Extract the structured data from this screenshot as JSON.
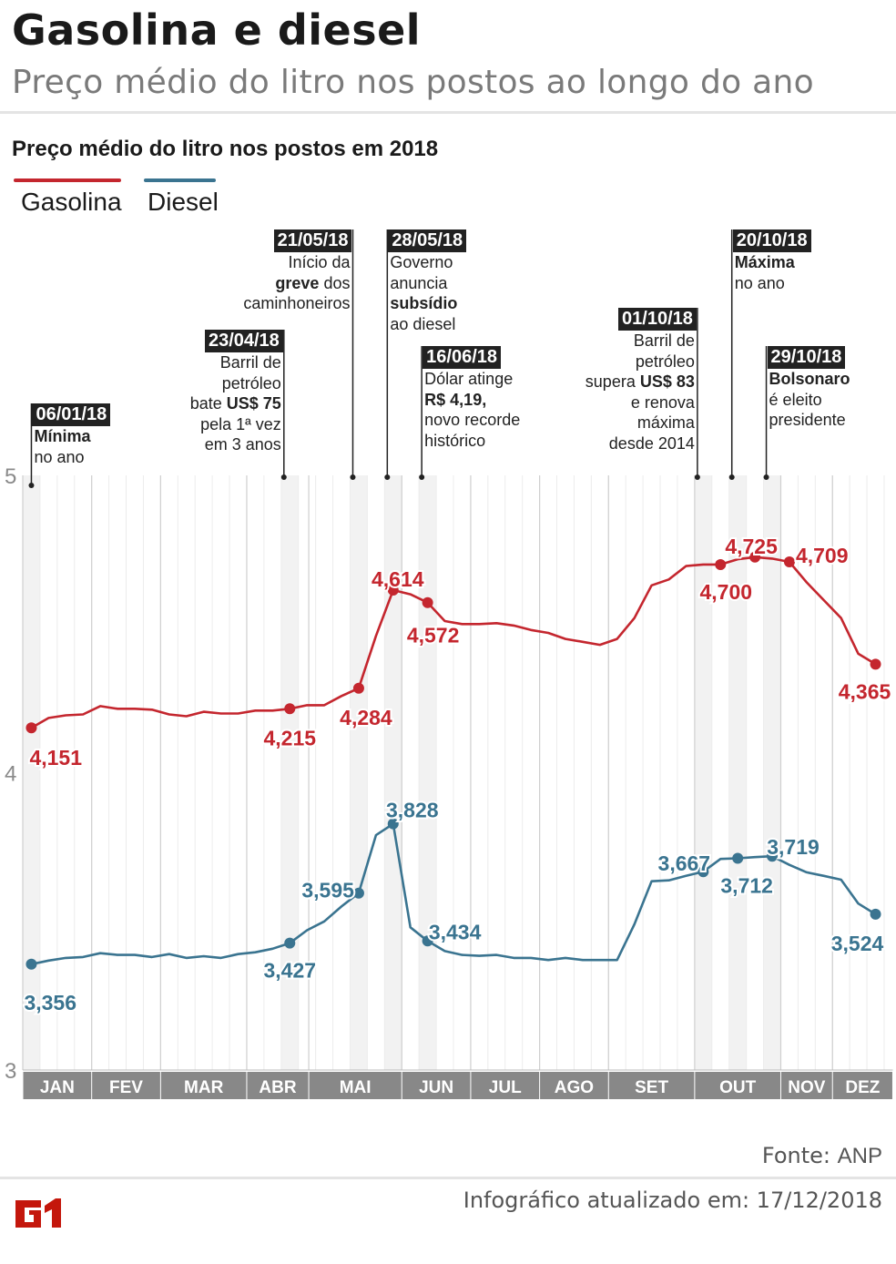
{
  "header": {
    "title": "Gasolina e diesel",
    "subtitle": "Preço médio do litro nos postos ao longo do ano"
  },
  "chart_data": {
    "type": "line",
    "title": "Preço médio do litro nos postos em 2018",
    "xlabel": "",
    "ylabel": "",
    "ylim": [
      3,
      5
    ],
    "yticks": [
      "3",
      "4",
      "5"
    ],
    "x_unit": "week",
    "months": [
      {
        "label": "JAN",
        "weeks": 4
      },
      {
        "label": "FEV",
        "weeks": 4
      },
      {
        "label": "MAR",
        "weeks": 5
      },
      {
        "label": "ABR",
        "weeks": 3.6
      },
      {
        "label": "MAI",
        "weeks": 5.4
      },
      {
        "label": "JUN",
        "weeks": 4
      },
      {
        "label": "JUL",
        "weeks": 4
      },
      {
        "label": "AGO",
        "weeks": 4
      },
      {
        "label": "SET",
        "weeks": 5
      },
      {
        "label": "OUT",
        "weeks": 5
      },
      {
        "label": "NOV",
        "weeks": 3
      },
      {
        "label": "DEZ",
        "weeks": 3.5
      }
    ],
    "highlighted_weeks": [
      0,
      15,
      19,
      21,
      23,
      39,
      41,
      43
    ],
    "grid": "vertical weekly",
    "legend_placement": "top-left",
    "series": [
      {
        "name": "Gasolina",
        "color": "#c4262e",
        "values": [
          4.151,
          4.184,
          4.193,
          4.196,
          4.224,
          4.215,
          4.215,
          4.212,
          4.196,
          4.19,
          4.205,
          4.199,
          4.199,
          4.209,
          4.209,
          4.215,
          4.227,
          4.227,
          4.258,
          4.284,
          4.46,
          4.614,
          4.6,
          4.572,
          4.51,
          4.5,
          4.5,
          4.503,
          4.495,
          4.48,
          4.47,
          4.45,
          4.44,
          4.43,
          4.45,
          4.52,
          4.63,
          4.65,
          4.695,
          4.7,
          4.7,
          4.718,
          4.725,
          4.72,
          4.709,
          4.64,
          4.58,
          4.52,
          4.4,
          4.365
        ],
        "labels": [
          {
            "week": 0,
            "text": "4,151"
          },
          {
            "week": 15,
            "text": "4,215"
          },
          {
            "week": 19,
            "text": "4,284"
          },
          {
            "week": 21,
            "text": "4,614"
          },
          {
            "week": 23,
            "text": "4,572"
          },
          {
            "week": 40,
            "text": "4,700"
          },
          {
            "week": 42,
            "text": "4,725"
          },
          {
            "week": 44,
            "text": "4,709"
          },
          {
            "week": 49,
            "text": "4,365"
          }
        ]
      },
      {
        "name": "Diesel",
        "color": "#3a7490",
        "values": [
          3.356,
          3.368,
          3.377,
          3.38,
          3.393,
          3.387,
          3.387,
          3.38,
          3.39,
          3.377,
          3.383,
          3.377,
          3.39,
          3.396,
          3.408,
          3.427,
          3.47,
          3.5,
          3.55,
          3.595,
          3.79,
          3.828,
          3.48,
          3.434,
          3.4,
          3.387,
          3.384,
          3.387,
          3.377,
          3.377,
          3.37,
          3.377,
          3.37,
          3.37,
          3.37,
          3.49,
          3.635,
          3.638,
          3.653,
          3.667,
          3.71,
          3.712,
          3.716,
          3.719,
          3.69,
          3.665,
          3.653,
          3.64,
          3.56,
          3.524
        ],
        "labels": [
          {
            "week": 0,
            "text": "3,356"
          },
          {
            "week": 15,
            "text": "3,427"
          },
          {
            "week": 19,
            "text": "3,595"
          },
          {
            "week": 21,
            "text": "3,828"
          },
          {
            "week": 23,
            "text": "3,434"
          },
          {
            "week": 39,
            "text": "3,667"
          },
          {
            "week": 41,
            "text": "3,712"
          },
          {
            "week": 43,
            "text": "3,719"
          },
          {
            "week": 49,
            "text": "3,524"
          }
        ]
      }
    ],
    "annotations": [
      {
        "week": 0,
        "date": "06/01/18",
        "lines": [
          [
            {
              "t": "Mínima",
              "b": true
            }
          ],
          [
            {
              "t": "no ano"
            }
          ]
        ]
      },
      {
        "week": 15,
        "date": "23/04/18",
        "lines": [
          [
            {
              "t": "Barril de"
            }
          ],
          [
            {
              "t": "petróleo"
            }
          ],
          [
            {
              "t": "bate "
            },
            {
              "t": "US$ 75",
              "b": true
            }
          ],
          [
            {
              "t": "pela 1ª vez"
            }
          ],
          [
            {
              "t": "em 3 anos"
            }
          ]
        ]
      },
      {
        "week": 19,
        "date": "21/05/18",
        "lines": [
          [
            {
              "t": "Início da"
            }
          ],
          [
            {
              "t": "greve",
              "b": true
            },
            {
              "t": " dos"
            }
          ],
          [
            {
              "t": "caminhoneiros"
            }
          ]
        ]
      },
      {
        "week": 21,
        "date": "28/05/18",
        "lines": [
          [
            {
              "t": "Governo"
            }
          ],
          [
            {
              "t": "anuncia"
            }
          ],
          [
            {
              "t": "subsídio",
              "b": true
            }
          ],
          [
            {
              "t": "ao diesel"
            }
          ]
        ]
      },
      {
        "week": 23,
        "date": "16/06/18",
        "lines": [
          [
            {
              "t": "Dólar atinge"
            }
          ],
          [
            {
              "t": "R$ 4,19,",
              "b": true
            }
          ],
          [
            {
              "t": "novo recorde"
            }
          ],
          [
            {
              "t": "histórico"
            }
          ]
        ]
      },
      {
        "week": 39,
        "date": "01/10/18",
        "lines": [
          [
            {
              "t": "Barril de"
            }
          ],
          [
            {
              "t": "petróleo"
            }
          ],
          [
            {
              "t": "supera "
            },
            {
              "t": "US$ 83",
              "b": true
            }
          ],
          [
            {
              "t": "e renova"
            }
          ],
          [
            {
              "t": "máxima"
            }
          ],
          [
            {
              "t": "desde 2014"
            }
          ]
        ]
      },
      {
        "week": 41,
        "date": "20/10/18",
        "lines": [
          [
            {
              "t": "Máxima",
              "b": true
            }
          ],
          [
            {
              "t": "no ano"
            }
          ]
        ]
      },
      {
        "week": 43,
        "date": "29/10/18",
        "lines": [
          [
            {
              "t": "Bolsonaro",
              "b": true
            }
          ],
          [
            {
              "t": "é eleito"
            }
          ],
          [
            {
              "t": "presidente"
            }
          ]
        ]
      }
    ]
  },
  "footer": {
    "source_label": "Fonte:",
    "source": "ANP",
    "updated": "Infográfico atualizado em: 17/12/2018",
    "logo_text": "G1",
    "logo_color": "#c4170c"
  }
}
